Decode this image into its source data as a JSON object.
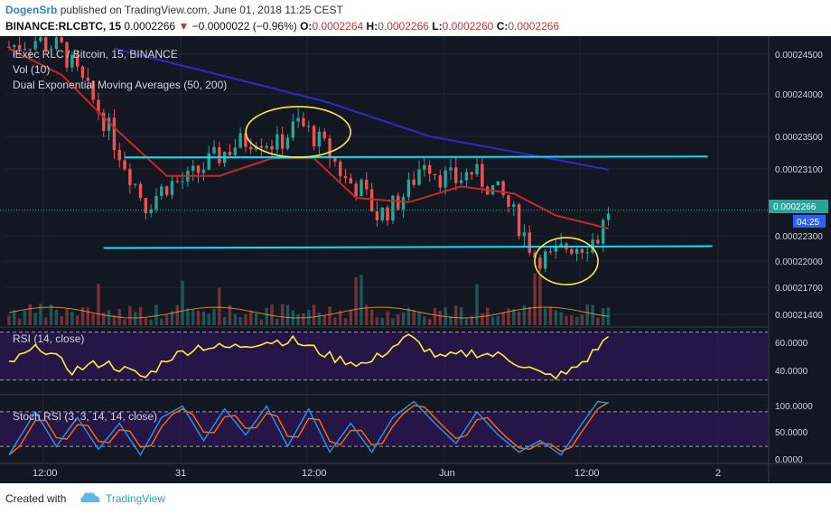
{
  "header": {
    "user": "DogenSrb",
    "published": "published on TradingView.com, June 01, 2018 11:25 CEST",
    "symbol": "BINANCE:RLCBTC, 15",
    "last": "0.0002266",
    "change_arrow": "▼",
    "change": "−0.0000022 (−0.96%)",
    "o_label": "O:",
    "o_value": "0.0002264",
    "h_label": "H:",
    "h_value": "0.0002266",
    "l_label": "L:",
    "l_value": "0.0002260",
    "c_label": "C:",
    "c_value": "0.0002266"
  },
  "panes": {
    "main_title": "iExec RLC / Bitcoin, 15, BINANCE",
    "vol_label": "Vol (10)",
    "ema_label": "Dual Exponential Moving Averages (50, 200)",
    "rsi_label": "RSI (14, close)",
    "stoch_label": "Stoch RSI (3, 3, 14, 14, close)"
  },
  "price_axis": {
    "ticks": [
      "0.00024500",
      "0.00024000",
      "0.00023500",
      "0.00023100",
      "0.00022300",
      "0.00022000",
      "0.00021700",
      "0.00021400"
    ],
    "last_price_label": "0.0002266",
    "countdown_label": "04:25"
  },
  "rsi_axis": {
    "ticks": [
      "60.0000",
      "40.0000"
    ]
  },
  "stoch_axis": {
    "ticks": [
      "100.0000",
      "50.0000",
      "0.0000"
    ]
  },
  "time_axis": {
    "ticks": [
      "12:00",
      "31",
      "12:00",
      "Jun",
      "12:00",
      "2"
    ]
  },
  "footer": {
    "created_with": "Created with",
    "brand": "TradingView"
  },
  "colors": {
    "background": "#131722",
    "up": "#26a69a",
    "down": "#ef5350",
    "ema50": "#c62828",
    "ema200": "#2b2bc9",
    "support_lines": "#00e5ff",
    "annotation": "#ffeb3b",
    "rsi": "#ffeb3b",
    "stoch_k": "#2196f3",
    "stoch_d": "#ff6d00",
    "band_fill": "#4a148c"
  },
  "chart_data": {
    "type": "candlestick",
    "title": "iExec RLC / Bitcoin, 15, BINANCE",
    "y_range": [
      0.0002135,
      0.000246
    ],
    "x_range": [
      "May 30 06:00",
      "Jun 02 03:00"
    ],
    "price_path": [
      [
        0,
        0.0002452
      ],
      [
        5,
        0.000246
      ],
      [
        10,
        0.000245
      ],
      [
        14,
        0.000241
      ],
      [
        18,
        0.000237
      ],
      [
        22,
        0.000232
      ],
      [
        26,
        0.0002272
      ],
      [
        30,
        0.0002295
      ],
      [
        34,
        0.00023
      ],
      [
        38,
        0.000232
      ],
      [
        43,
        0.000234
      ],
      [
        47,
        0.000235
      ],
      [
        51,
        0.000234
      ],
      [
        55,
        0.0002365
      ],
      [
        58,
        0.000235
      ],
      [
        61,
        0.000233
      ],
      [
        64,
        0.00023
      ],
      [
        67,
        0.000229
      ],
      [
        70,
        0.000226
      ],
      [
        73,
        0.000227
      ],
      [
        76,
        0.000229
      ],
      [
        79,
        0.0002325
      ],
      [
        82,
        0.0002305
      ],
      [
        85,
        0.00023
      ],
      [
        88,
        0.000231
      ],
      [
        91,
        0.0002295
      ],
      [
        94,
        0.000228
      ],
      [
        97,
        0.000225
      ],
      [
        100,
        0.0002215
      ],
      [
        103,
        0.000221
      ],
      [
        106,
        0.0002225
      ],
      [
        109,
        0.0002227
      ],
      [
        112,
        0.0002235
      ],
      [
        114,
        0.0002266
      ]
    ],
    "ema50": [
      [
        0,
        0.000245
      ],
      [
        10,
        0.000242
      ],
      [
        20,
        0.000236
      ],
      [
        30,
        0.0002305
      ],
      [
        40,
        0.0002305
      ],
      [
        50,
        0.0002325
      ],
      [
        58,
        0.0002325
      ],
      [
        66,
        0.000228
      ],
      [
        76,
        0.0002275
      ],
      [
        86,
        0.0002293
      ],
      [
        96,
        0.0002285
      ],
      [
        104,
        0.000226
      ],
      [
        114,
        0.0002245
      ]
    ],
    "ema200": [
      [
        20,
        0.000245
      ],
      [
        40,
        0.000242
      ],
      [
        60,
        0.000239
      ],
      [
        80,
        0.000235
      ],
      [
        100,
        0.0002328
      ],
      [
        114,
        0.0002312
      ]
    ],
    "support_levels": [
      0.0002326,
      0.0002225
    ],
    "rsi": [
      [
        0,
        44
      ],
      [
        6,
        58
      ],
      [
        12,
        38
      ],
      [
        18,
        45
      ],
      [
        26,
        32
      ],
      [
        30,
        48
      ],
      [
        36,
        58
      ],
      [
        42,
        57
      ],
      [
        48,
        62
      ],
      [
        54,
        63
      ],
      [
        58,
        56
      ],
      [
        62,
        48
      ],
      [
        68,
        43
      ],
      [
        72,
        55
      ],
      [
        76,
        66
      ],
      [
        82,
        48
      ],
      [
        88,
        53
      ],
      [
        94,
        50
      ],
      [
        98,
        42
      ],
      [
        102,
        33
      ],
      [
        106,
        35
      ],
      [
        110,
        48
      ],
      [
        114,
        66
      ]
    ],
    "stoch_k": [
      [
        0,
        5
      ],
      [
        5,
        80
      ],
      [
        9,
        20
      ],
      [
        13,
        70
      ],
      [
        17,
        15
      ],
      [
        21,
        60
      ],
      [
        25,
        5
      ],
      [
        29,
        70
      ],
      [
        33,
        90
      ],
      [
        37,
        30
      ],
      [
        41,
        85
      ],
      [
        45,
        40
      ],
      [
        49,
        90
      ],
      [
        53,
        20
      ],
      [
        57,
        85
      ],
      [
        61,
        10
      ],
      [
        65,
        60
      ],
      [
        69,
        10
      ],
      [
        73,
        70
      ],
      [
        77,
        98
      ],
      [
        81,
        60
      ],
      [
        85,
        25
      ],
      [
        89,
        80
      ],
      [
        93,
        40
      ],
      [
        97,
        10
      ],
      [
        101,
        30
      ],
      [
        105,
        5
      ],
      [
        109,
        60
      ],
      [
        112,
        98
      ],
      [
        114,
        95
      ]
    ]
  }
}
